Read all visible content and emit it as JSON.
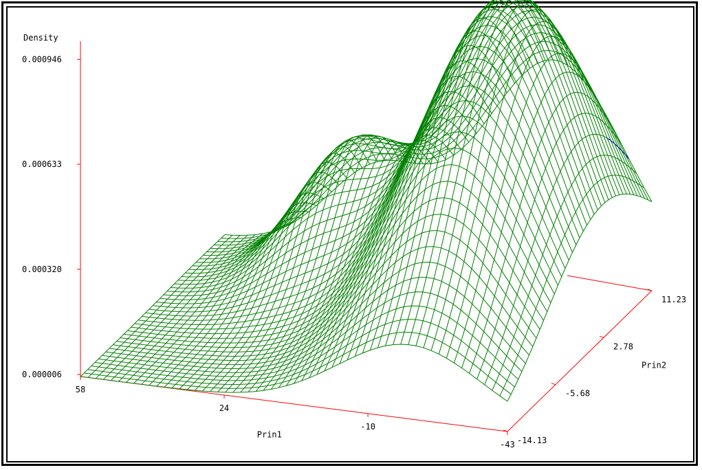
{
  "chart_data": {
    "type": "surface",
    "title": "",
    "zlabel": "Density",
    "xlabel": "Prin1",
    "ylabel": "Prin2",
    "z_ticks": [
      "0.000006",
      "0.000320",
      "0.000633",
      "0.000946"
    ],
    "x_ticks": [
      "58",
      "24",
      "-10",
      "-43"
    ],
    "y_ticks": [
      "-14.13",
      "-5.68",
      "2.78",
      "11.23"
    ],
    "xlim": [
      -43,
      58
    ],
    "ylim": [
      -14.13,
      11.23
    ],
    "zlim": [
      6e-06,
      0.001
    ],
    "grid": false,
    "colors": {
      "mesh": "#008000",
      "mesh_back": "#0000cc",
      "axes": "#ff0000"
    },
    "peaks": [
      {
        "prin1": -20,
        "prin2": 2.5,
        "density": 0.00098
      },
      {
        "prin1": 22,
        "prin2": 6.5,
        "density": 0.00038
      }
    ]
  }
}
